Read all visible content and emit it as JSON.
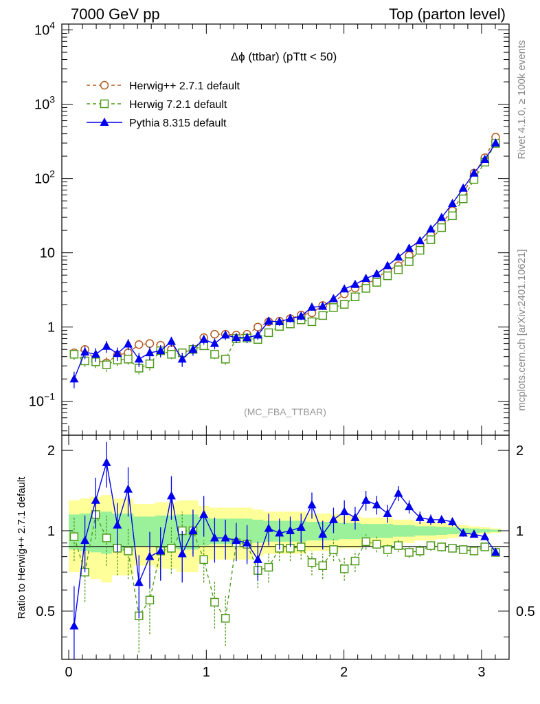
{
  "header": {
    "left_label": "7000 GeV pp",
    "right_label": "Top (parton level)"
  },
  "side_labels": {
    "rivet": "Rivet 4.1.0, ≥ 100k events",
    "mcplots": "mcplots.cern.ch [arXiv:2401.10621]"
  },
  "chart_data": [
    {
      "type": "line",
      "panel": "main",
      "title": "Δϕ (ttbar) (pTtt < 50)",
      "watermark": "(MC_FBA_TTBAR)",
      "xlabel": "",
      "ylabel": "",
      "xlim": [
        -0.05,
        3.2
      ],
      "ylim": [
        0.035,
        12000
      ],
      "yscale": "log",
      "y_ticks": [
        {
          "value": 0.1,
          "base": "10",
          "exp": "−1"
        },
        {
          "value": 1,
          "base": "1",
          "exp": ""
        },
        {
          "value": 10,
          "base": "10",
          "exp": ""
        },
        {
          "value": 100,
          "base": "10",
          "exp": "2"
        },
        {
          "value": 1000,
          "base": "10",
          "exp": "3"
        },
        {
          "value": 10000,
          "base": "10",
          "exp": "4"
        }
      ],
      "legend": {
        "position": "top-left",
        "entries": [
          {
            "label": "Herwig++ 2.7.1 default",
            "color": "#b35a1f",
            "marker": "open-circle",
            "dash": true
          },
          {
            "label": "Herwig 7.2.1 default",
            "color": "#4e9a1a",
            "marker": "open-square",
            "dash": true
          },
          {
            "label": "Pythia 8.315 default",
            "color": "#0000ee",
            "marker": "filled-triangle",
            "dash": false
          }
        ]
      },
      "x": [
        0.0393,
        0.1178,
        0.1963,
        0.2749,
        0.3534,
        0.432,
        0.5105,
        0.589,
        0.6676,
        0.7461,
        0.8247,
        0.9032,
        0.9817,
        1.0603,
        1.1388,
        1.2174,
        1.2959,
        1.3744,
        1.453,
        1.5315,
        1.6101,
        1.6886,
        1.7671,
        1.8457,
        1.9242,
        2.0028,
        2.0813,
        2.1598,
        2.2384,
        2.3169,
        2.3955,
        2.474,
        2.5525,
        2.6311,
        2.7096,
        2.7882,
        2.8667,
        2.9452,
        3.0238,
        3.1023
      ],
      "series": [
        {
          "name": "Herwig++ 2.7.1 default",
          "color": "#b35a1f",
          "values": [
            0.45,
            0.5,
            0.36,
            0.33,
            0.42,
            0.45,
            0.58,
            0.6,
            0.57,
            0.5,
            0.45,
            0.5,
            0.72,
            0.8,
            0.8,
            0.78,
            0.8,
            1.0,
            1.18,
            1.2,
            1.3,
            1.45,
            1.55,
            1.95,
            2.15,
            2.8,
            3.35,
            3.7,
            4.55,
            5.8,
            6.7,
            9.2,
            12.8,
            17.3,
            25.0,
            36.8,
            62.0,
            118,
            190,
            360
          ],
          "errors": [
            0.07,
            0.07,
            0.06,
            0.06,
            0.06,
            0.06,
            0.07,
            0.07,
            0.07,
            0.06,
            0.06,
            0.06,
            0.07,
            0.07,
            0.07,
            0.07,
            0.07,
            0.08,
            0.09,
            0.09,
            0.1,
            0.11,
            0.12,
            0.14,
            0.15,
            0.18,
            0.2,
            0.22,
            0.26,
            0.3,
            0.35,
            0.45,
            0.6,
            0.8,
            1.1,
            1.5,
            2.5,
            4.5,
            7.0,
            12
          ]
        },
        {
          "name": "Herwig 7.2.1 default",
          "color": "#4e9a1a",
          "values": [
            0.43,
            0.35,
            0.34,
            0.31,
            0.36,
            0.37,
            0.28,
            0.32,
            0.48,
            0.43,
            0.45,
            0.5,
            0.56,
            0.43,
            0.37,
            0.7,
            0.71,
            0.68,
            0.84,
            1.02,
            1.1,
            1.25,
            1.18,
            1.43,
            1.83,
            2.02,
            2.55,
            3.32,
            4.0,
            4.9,
            5.9,
            7.6,
            10.8,
            15.0,
            21.8,
            31.5,
            53.2,
            97.0,
            166,
            297
          ],
          "errors": [
            0.07,
            0.06,
            0.06,
            0.06,
            0.06,
            0.06,
            0.05,
            0.06,
            0.07,
            0.06,
            0.06,
            0.07,
            0.07,
            0.06,
            0.06,
            0.07,
            0.07,
            0.07,
            0.08,
            0.09,
            0.09,
            0.1,
            0.1,
            0.11,
            0.13,
            0.14,
            0.16,
            0.19,
            0.22,
            0.26,
            0.3,
            0.38,
            0.5,
            0.7,
            0.95,
            1.3,
            2.2,
            3.9,
            6.5,
            11
          ]
        },
        {
          "name": "Pythia 8.315 default",
          "color": "#0000ee",
          "values": [
            0.2,
            0.46,
            0.43,
            0.55,
            0.44,
            0.59,
            0.37,
            0.45,
            0.48,
            0.64,
            0.37,
            0.5,
            0.68,
            0.6,
            0.78,
            0.72,
            0.72,
            0.78,
            1.2,
            1.18,
            1.3,
            1.4,
            1.85,
            1.9,
            2.4,
            3.25,
            3.75,
            4.5,
            5.2,
            6.7,
            8.75,
            11.5,
            14.5,
            20.8,
            29.8,
            46.0,
            74.0,
            118,
            180,
            300
          ],
          "errors": [
            0.05,
            0.09,
            0.09,
            0.1,
            0.09,
            0.1,
            0.08,
            0.09,
            0.09,
            0.1,
            0.08,
            0.09,
            0.1,
            0.1,
            0.11,
            0.11,
            0.11,
            0.11,
            0.14,
            0.14,
            0.15,
            0.16,
            0.19,
            0.2,
            0.23,
            0.28,
            0.31,
            0.35,
            0.4,
            0.48,
            0.6,
            0.75,
            0.9,
            1.2,
            1.7,
            2.5,
            3.8,
            5.8,
            8.5,
            13
          ]
        }
      ]
    },
    {
      "type": "line",
      "panel": "ratio",
      "ylabel": "Ratio to Herwig++ 2.7.1 default",
      "xlim": [
        -0.05,
        3.2
      ],
      "ylim": [
        0.33,
        2.28
      ],
      "yscale": "log",
      "reference": 1,
      "y_ticks": [
        0.5,
        1,
        2
      ],
      "y_tick_labels": [
        "0.5",
        "1",
        "2"
      ],
      "x_ticks": [
        0,
        1,
        2,
        3
      ],
      "x_tick_labels": [
        "0",
        "1",
        "2",
        "3"
      ],
      "band_colors": {
        "inner": "#9af19a",
        "outer": "#ffff99"
      },
      "band_inner": [
        0.15,
        0.16,
        0.17,
        0.18,
        0.16,
        0.16,
        0.13,
        0.13,
        0.14,
        0.14,
        0.15,
        0.15,
        0.12,
        0.11,
        0.11,
        0.11,
        0.11,
        0.1,
        0.09,
        0.09,
        0.09,
        0.09,
        0.08,
        0.08,
        0.08,
        0.07,
        0.07,
        0.06,
        0.06,
        0.06,
        0.05,
        0.05,
        0.04,
        0.04,
        0.035,
        0.03,
        0.025,
        0.02,
        0.015,
        0.01
      ],
      "band_outer": [
        0.3,
        0.32,
        0.34,
        0.36,
        0.32,
        0.32,
        0.26,
        0.26,
        0.28,
        0.28,
        0.3,
        0.3,
        0.24,
        0.22,
        0.22,
        0.22,
        0.22,
        0.2,
        0.18,
        0.18,
        0.18,
        0.18,
        0.16,
        0.16,
        0.16,
        0.14,
        0.14,
        0.12,
        0.12,
        0.12,
        0.1,
        0.1,
        0.08,
        0.08,
        0.07,
        0.06,
        0.05,
        0.04,
        0.03,
        0.02
      ],
      "series": [
        {
          "name": "Herwig 7.2.1 default",
          "color": "#4e9a1a",
          "values": [
            0.95,
            0.7,
            1.15,
            0.94,
            0.86,
            0.84,
            0.48,
            0.55,
            0.84,
            0.86,
            1.0,
            1.0,
            0.78,
            0.54,
            0.47,
            0.9,
            0.89,
            0.71,
            0.73,
            0.86,
            0.86,
            0.87,
            0.76,
            0.74,
            0.85,
            0.72,
            0.77,
            0.91,
            0.89,
            0.85,
            0.88,
            0.83,
            0.84,
            0.88,
            0.87,
            0.86,
            0.85,
            0.84,
            0.87,
            0.83
          ],
          "errors": [
            0.18,
            0.16,
            0.22,
            0.2,
            0.18,
            0.18,
            0.13,
            0.14,
            0.17,
            0.17,
            0.18,
            0.18,
            0.14,
            0.11,
            0.1,
            0.12,
            0.12,
            0.1,
            0.09,
            0.09,
            0.09,
            0.09,
            0.08,
            0.08,
            0.08,
            0.07,
            0.07,
            0.06,
            0.06,
            0.05,
            0.05,
            0.04,
            0.04,
            0.04,
            0.035,
            0.03,
            0.025,
            0.02,
            0.02,
            0.02
          ]
        },
        {
          "name": "Pythia 8.315 default",
          "color": "#0000ee",
          "values": [
            0.44,
            0.92,
            1.3,
            1.8,
            1.05,
            1.43,
            0.64,
            0.8,
            0.84,
            1.35,
            0.82,
            1.0,
            1.15,
            0.94,
            0.94,
            0.92,
            0.9,
            0.78,
            1.02,
            0.98,
            1.0,
            1.03,
            1.25,
            0.97,
            1.1,
            1.18,
            1.12,
            1.3,
            1.25,
            1.16,
            1.38,
            1.23,
            1.12,
            1.1,
            1.1,
            1.08,
            0.98,
            0.97,
            0.95,
            0.83
          ],
          "errors": [
            0.18,
            0.22,
            0.28,
            0.35,
            0.22,
            0.3,
            0.17,
            0.19,
            0.19,
            0.25,
            0.18,
            0.2,
            0.2,
            0.18,
            0.16,
            0.15,
            0.15,
            0.13,
            0.14,
            0.13,
            0.13,
            0.13,
            0.14,
            0.12,
            0.12,
            0.12,
            0.11,
            0.11,
            0.1,
            0.09,
            0.09,
            0.07,
            0.06,
            0.05,
            0.04,
            0.04,
            0.03,
            0.02,
            0.02,
            0.015
          ]
        }
      ]
    }
  ]
}
